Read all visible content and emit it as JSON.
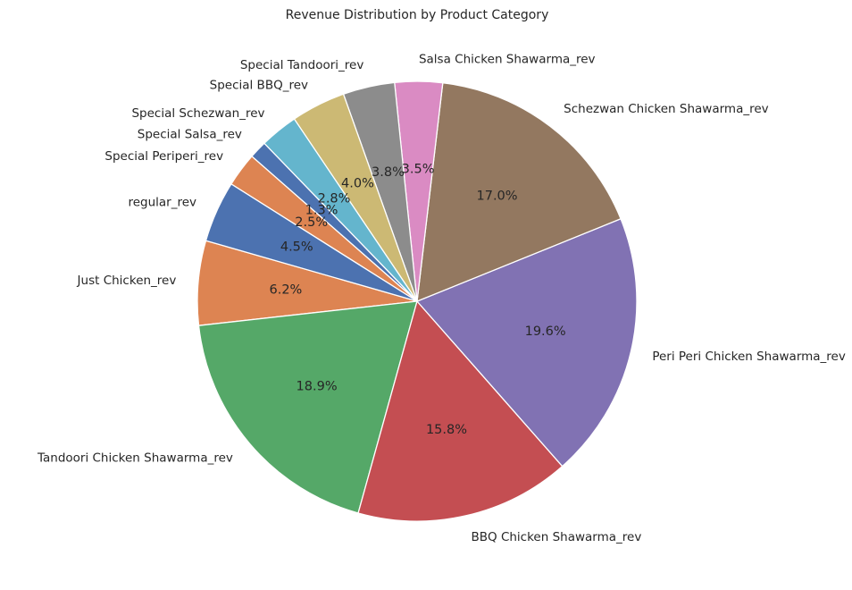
{
  "chart_data": {
    "type": "pie",
    "title": "Revenue Distribution by Product Category",
    "start_angle_deg": 164,
    "direction": "counterclockwise",
    "slices": [
      {
        "label": "Just Chicken_rev",
        "value": 6.2,
        "pct_label": "6.2%",
        "color": "#dd8452"
      },
      {
        "label": "Tandoori Chicken Shawarma_rev",
        "value": 18.9,
        "pct_label": "18.9%",
        "color": "#55a868"
      },
      {
        "label": "BBQ Chicken Shawarma_rev",
        "value": 15.8,
        "pct_label": "15.8%",
        "color": "#c44e52"
      },
      {
        "label": "Peri Peri Chicken Shawarma_rev",
        "value": 19.6,
        "pct_label": "19.6%",
        "color": "#8172b3"
      },
      {
        "label": "Schezwan Chicken Shawarma_rev",
        "value": 17.0,
        "pct_label": "17.0%",
        "color": "#937860"
      },
      {
        "label": "Salsa Chicken Shawarma_rev",
        "value": 3.5,
        "pct_label": "3.5%",
        "color": "#da8bc3"
      },
      {
        "label": "Special Tandoori_rev",
        "value": 3.8,
        "pct_label": "3.8%",
        "color": "#8c8c8c"
      },
      {
        "label": "Special BBQ_rev",
        "value": 4.0,
        "pct_label": "4.0%",
        "color": "#ccb974"
      },
      {
        "label": "Special Schezwan_rev",
        "value": 2.8,
        "pct_label": "2.8%",
        "color": "#64b5cd"
      },
      {
        "label": "Special Salsa_rev",
        "value": 1.3,
        "pct_label": "1.3%",
        "color": "#4c72b0"
      },
      {
        "label": "Special Periperi_rev",
        "value": 2.5,
        "pct_label": "2.5%",
        "color": "#dd8452"
      },
      {
        "label": "regular_rev",
        "value": 4.5,
        "pct_label": "4.5%",
        "color": "#4c72b0"
      }
    ]
  }
}
